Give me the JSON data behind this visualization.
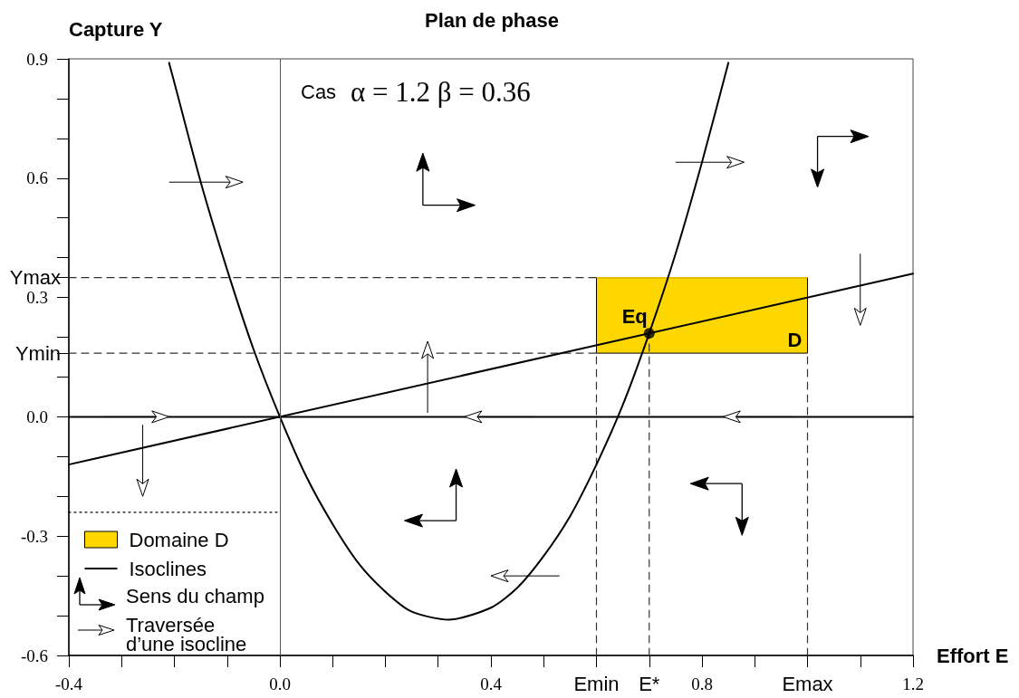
{
  "chart_data": {
    "type": "line",
    "title": "Plan de phase",
    "xlabel": "Effort E",
    "ylabel": "Capture Y",
    "xlim": [
      -0.4,
      1.2
    ],
    "ylim": [
      -0.6,
      0.9
    ],
    "xticks": [
      -0.4,
      {
        "value": -0.3,
        "label": null
      },
      {
        "value": -0.2,
        "label": null
      },
      {
        "value": -0.1,
        "label": null
      },
      {
        "value": 0,
        "label": "0.0"
      },
      {
        "value": 0.1,
        "label": null
      },
      {
        "value": 0.2,
        "label": null
      },
      {
        "value": 0.3,
        "label": null
      },
      0.4,
      {
        "value": 0.5,
        "label": null
      },
      {
        "value": 0.6,
        "label": "Emin"
      },
      {
        "value": 0.7,
        "label": "E*"
      },
      0.8,
      {
        "value": 0.9,
        "label": null
      },
      {
        "value": 1,
        "label": "Emax"
      },
      {
        "value": 1.1,
        "label": null
      },
      1.2
    ],
    "yticks": [
      -0.6,
      {
        "value": -0.5,
        "label": null
      },
      {
        "value": -0.4,
        "label": null
      },
      -0.3,
      {
        "value": -0.2,
        "label": null
      },
      {
        "value": -0.1,
        "label": null
      },
      {
        "value": 0,
        "label": "0.0"
      },
      {
        "value": 0.1,
        "label": null
      },
      {
        "value": 0.16,
        "label": "Ymin"
      },
      {
        "value": 0.2,
        "label": null
      },
      0.3,
      {
        "value": 0.35,
        "label": "Ymax"
      },
      {
        "value": 0.4,
        "label": null
      },
      {
        "value": 0.5,
        "label": null
      },
      0.6,
      {
        "value": 0.7,
        "label": null
      },
      {
        "value": 0.8,
        "label": null
      },
      0.9
    ],
    "marker": "none",
    "legend": "bottom left",
    "ref_lines": [
      {
        "axis": "x",
        "value": 0,
        "color": "#555555"
      }
    ],
    "series": [
      {
        "name": "Domaine D",
        "color": "#ffd700",
        "x": [
          0.6,
          1
        ],
        "values": [
          0.35,
          0.35
        ],
        "lower": [
          0.16,
          0.16
        ],
        "upper": [
          0.35,
          0.35
        ]
      },
      {
        "color": "#333333",
        "line_style": "dashed",
        "x": [
          -0.4,
          0.6
        ],
        "values": [
          0.35,
          0.35
        ]
      },
      {
        "color": "#333333",
        "line_style": "dashed",
        "x": [
          -0.4,
          0.6
        ],
        "values": [
          0.16,
          0.16
        ]
      },
      {
        "color": "#333333",
        "line_style": "dashed",
        "x": [
          0.6,
          0.6
        ],
        "values": [
          -0.6,
          0.16
        ]
      },
      {
        "color": "#333333",
        "line_style": "dashed",
        "x": [
          0.7,
          0.7
        ],
        "values": [
          -0.6,
          0.21
        ]
      },
      {
        "color": "#333333",
        "line_style": "dashed",
        "x": [
          1,
          1
        ],
        "values": [
          -0.6,
          0.16
        ]
      },
      {
        "color": "#000000",
        "line_style": "dotted",
        "x": [
          -0.4,
          0
        ],
        "values": [
          -0.24,
          -0.24
        ]
      },
      {
        "color": "#000000",
        "x": [
          -0.4,
          1.2
        ],
        "values": [
          0,
          0
        ]
      },
      {
        "color": "#000000",
        "x": [
          -0.4,
          1.2
        ],
        "values": [
          -0.12,
          0.36
        ]
      },
      {
        "name": "Isoclines",
        "color": "#000000",
        "x": [
          -0.21,
          -0.2,
          -0.15,
          -0.1,
          -0.05,
          0,
          0.05,
          0.1,
          0.15,
          0.2,
          0.25,
          0.32,
          0.4,
          0.45,
          0.5,
          0.55,
          0.6,
          0.65,
          0.7,
          0.75,
          0.8,
          0.85
        ],
        "values": [
          0.89,
          0.84,
          0.59,
          0.37,
          0.17,
          0,
          -0.15,
          -0.27,
          -0.37,
          -0.44,
          -0.49,
          -0.51,
          -0.48,
          -0.43,
          -0.35,
          -0.25,
          -0.12,
          0.03,
          0.21,
          0.41,
          0.64,
          0.89
        ]
      },
      {
        "type": "scatter",
        "color": "#000000",
        "marker": "circle",
        "x": [
          0.7
        ],
        "values": [
          0.21
        ]
      }
    ],
    "annotations": [
      "Cas α = 1.2 β = 0.36",
      {
        "text": "Eq",
        "x": 0.7,
        "y": 0.21
      },
      "D",
      "Sens du champ",
      "Traversée d’une isocline"
    ]
  }
}
